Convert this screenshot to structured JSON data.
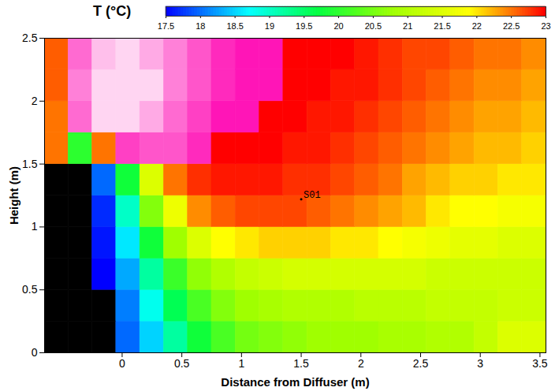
{
  "chart_data": {
    "type": "heatmap",
    "xlabel": "Distance from Diffuser (m)",
    "ylabel": "Height (m)",
    "xlim": [
      -0.65,
      3.55
    ],
    "ylim": [
      0,
      2.5
    ],
    "xticks": [
      0,
      0.5,
      1,
      1.5,
      2,
      2.5,
      3,
      3.5
    ],
    "yticks": [
      0,
      0.5,
      1,
      1.5,
      2,
      2.5
    ],
    "x_bins": [
      -0.65,
      -0.45,
      -0.25,
      -0.05,
      0.15,
      0.35,
      0.55,
      0.75,
      0.95,
      1.15,
      1.35,
      1.55,
      1.75,
      1.95,
      2.15,
      2.35,
      2.55,
      2.75,
      2.95,
      3.15,
      3.35,
      3.55
    ],
    "y_bins": [
      0,
      0.25,
      0.5,
      0.75,
      1,
      1.25,
      1.5,
      1.75,
      2,
      2.25,
      2.5
    ],
    "values": [
      [
        17,
        17,
        17.3,
        18,
        18.5,
        19.2,
        19.8,
        20.2,
        20.5,
        20.6,
        20.7,
        20.8,
        20.8,
        20.8,
        20.9,
        20.9,
        21,
        21,
        21.2,
        21.5,
        21.5
      ],
      [
        17,
        17,
        17.4,
        18.1,
        18.8,
        19.6,
        20.2,
        20.6,
        20.8,
        20.9,
        21,
        21,
        21,
        21.1,
        21.1,
        21.1,
        21.2,
        21.2,
        21.2,
        21.3,
        21.3
      ],
      [
        17,
        17,
        17.5,
        18.3,
        19.2,
        20.1,
        20.7,
        21,
        21.2,
        21.3,
        21.4,
        21.4,
        21.4,
        21.4,
        21.4,
        21.4,
        21.3,
        21.3,
        21.3,
        21.3,
        21.3
      ],
      [
        17,
        17,
        17.6,
        18.6,
        19.8,
        20.8,
        21.5,
        21.9,
        22,
        22.1,
        22.1,
        22.1,
        22,
        22,
        21.9,
        21.8,
        21.7,
        21.6,
        21.6,
        21.5,
        21.5
      ],
      [
        17,
        17,
        17.7,
        19,
        20.6,
        21.7,
        22.4,
        22.6,
        22.7,
        22.7,
        22.7,
        22.6,
        22.5,
        22.4,
        22.3,
        22.2,
        22,
        21.9,
        21.9,
        21.8,
        21.8
      ],
      [
        17,
        17,
        18,
        19.8,
        21.5,
        22.5,
        22.8,
        22.9,
        22.9,
        22.9,
        22.8,
        22.8,
        22.7,
        22.6,
        22.5,
        22.3,
        22.2,
        22.1,
        22.1,
        22,
        22
      ],
      [
        22.5,
        20,
        22.5,
        23.3,
        23.4,
        23.4,
        23.2,
        23,
        23,
        23,
        22.9,
        22.9,
        22.8,
        22.7,
        22.6,
        22.5,
        22.4,
        22.3,
        22.2,
        22.2,
        22.1
      ],
      [
        22.5,
        23.5,
        24,
        24,
        23.8,
        23.5,
        23.3,
        23.1,
        23.1,
        23,
        23,
        22.9,
        22.9,
        22.8,
        22.7,
        22.6,
        22.5,
        22.4,
        22.3,
        22.3,
        22.2
      ],
      [
        22.6,
        23.6,
        24,
        24,
        24,
        23.6,
        23.4,
        23.2,
        23.1,
        23.1,
        23,
        23,
        22.9,
        22.9,
        22.8,
        22.7,
        22.6,
        22.5,
        22.4,
        22.4,
        22.3
      ],
      [
        22.6,
        23.5,
        23.9,
        24,
        23.8,
        23.6,
        23.4,
        23.2,
        23.1,
        23.1,
        23,
        23,
        23,
        22.9,
        22.8,
        22.7,
        22.7,
        22.6,
        22.5,
        22.5,
        22.4
      ]
    ],
    "colorbar": {
      "label": "T (°C)",
      "range": [
        17.5,
        23
      ],
      "ticks": [
        17.5,
        18,
        18.5,
        19,
        19.5,
        20,
        20.5,
        21,
        21.5,
        22,
        22.5,
        23
      ]
    },
    "annotations": [
      {
        "text": "S01",
        "x": 1.5,
        "y": 1.22
      }
    ]
  }
}
